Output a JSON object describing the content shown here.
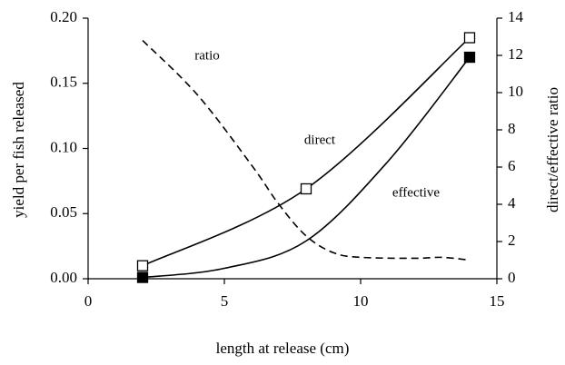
{
  "chart_data": {
    "type": "line",
    "xlabel": "length at release (cm)",
    "ylabel": "yield per fish released",
    "y2label": "direct/effective ratio",
    "xlim": [
      0,
      15
    ],
    "xticks": [
      0,
      5,
      10,
      15
    ],
    "ylim": [
      0,
      0.2
    ],
    "yticks": [
      {
        "value": 0,
        "label": "0.00"
      },
      {
        "value": 0.05,
        "label": "0.05"
      },
      {
        "value": 0.1,
        "label": "0.10"
      },
      {
        "value": 0.15,
        "label": "0.15"
      },
      {
        "value": 0.2,
        "label": "0.20"
      }
    ],
    "y2lim": [
      0,
      14
    ],
    "y2ticks": [
      0,
      2,
      4,
      6,
      8,
      10,
      12,
      14
    ],
    "grid": false,
    "series": [
      {
        "name": "direct",
        "color": "#000000",
        "x": [
          2,
          8,
          14
        ],
        "values": [
          0.01,
          0.069,
          0.185
        ],
        "marker": "open-square",
        "line": "solid"
      },
      {
        "name": "effective",
        "color": "#000000",
        "x": [
          2,
          5,
          8,
          11,
          14
        ],
        "values": [
          0.001,
          0.008,
          0.029,
          0.09,
          0.17
        ],
        "marker": "none",
        "line": "solid"
      },
      {
        "color": "#000000",
        "x": [
          2,
          14
        ],
        "values": [
          0.001,
          0.17
        ],
        "marker": "filled-square",
        "line": "none"
      },
      {
        "name": "ratio",
        "color": "#000000",
        "axis": "y2",
        "x": [
          2,
          4,
          6,
          7,
          8,
          9,
          10,
          12,
          13,
          14
        ],
        "values": [
          12.8,
          9.9,
          6.1,
          4.0,
          2.3,
          1.4,
          1.15,
          1.1,
          1.15,
          1.0
        ],
        "marker": "none",
        "line": "dashed"
      }
    ]
  }
}
